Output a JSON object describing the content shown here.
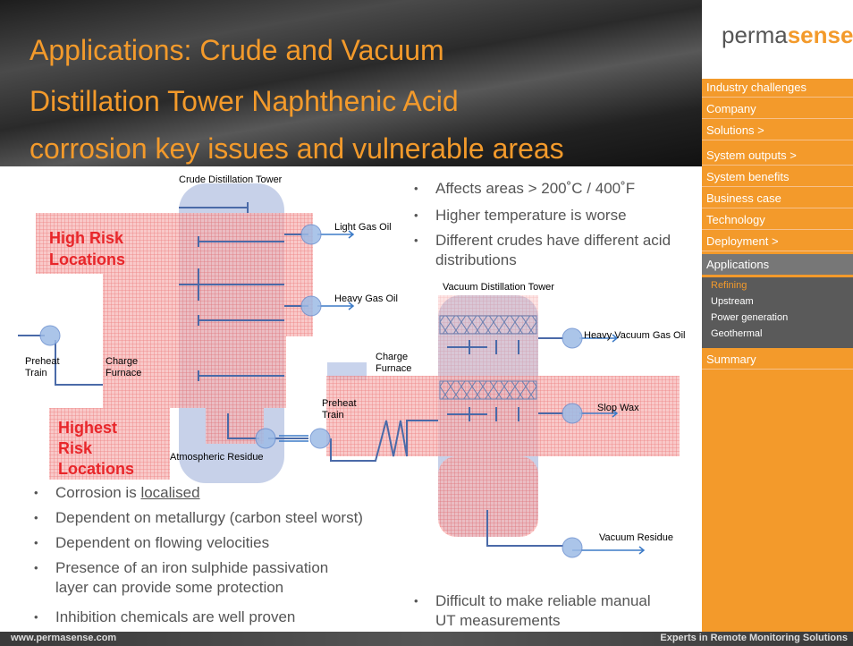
{
  "header": {
    "title_lines": [
      "Applications: Crude and Vacuum",
      "Distillation Tower Naphthenic Acid",
      "corrosion key issues and vulnerable areas"
    ]
  },
  "logo": {
    "part1": "perma",
    "part2": "sense"
  },
  "nav": {
    "items": [
      "Industry challenges",
      "Company",
      "Solutions >",
      "System outputs >",
      "System benefits",
      "Business case",
      "Technology",
      "Deployment >"
    ],
    "active": "Applications",
    "subitems": [
      "Refining",
      "Upstream",
      "Power generation",
      "Geothermal"
    ],
    "last": "Summary"
  },
  "diagram": {
    "crude_tower": "Crude Distillation Tower",
    "light_gas_oil": "Light Gas Oil",
    "high_risk": [
      "High Risk",
      "Locations"
    ],
    "heavy_gas_oil": "Heavy Gas Oil",
    "preheat_train_1": [
      "Preheat",
      "Train"
    ],
    "charge_furnace_1": [
      "Charge",
      "Furnace"
    ],
    "highest_risk": [
      "Highest",
      "Risk",
      "Locations"
    ],
    "atmospheric_residue": "Atmospheric Residue",
    "charge_furnace_2": [
      "Charge",
      "Furnace"
    ],
    "preheat_train_2": [
      "Preheat",
      "Train"
    ],
    "vacuum_tower": "Vacuum Distillation Tower",
    "heavy_vacuum_gas_oil": "Heavy Vacuum Gas Oil",
    "slop_wax": "Slop Wax",
    "vacuum_residue": "Vacuum Residue"
  },
  "bullets_top": [
    "Affects areas > 200˚C / 400˚F",
    "Higher temperature is worse",
    "Different crudes have different acid distributions"
  ],
  "bullets_left": [
    {
      "text": "Corrosion is",
      "underlined": "localised"
    },
    "Dependent on metallurgy (carbon steel worst)",
    "Dependent on flowing velocities",
    "Presence of an iron sulphide passivation layer can provide some protection",
    "Inhibition chemicals are well proven"
  ],
  "bullets_bottom": [
    "Difficult to make reliable manual UT measurements"
  ],
  "footer": {
    "url": "www.permasense.com",
    "tagline": "Experts in Remote Monitoring Solutions"
  }
}
